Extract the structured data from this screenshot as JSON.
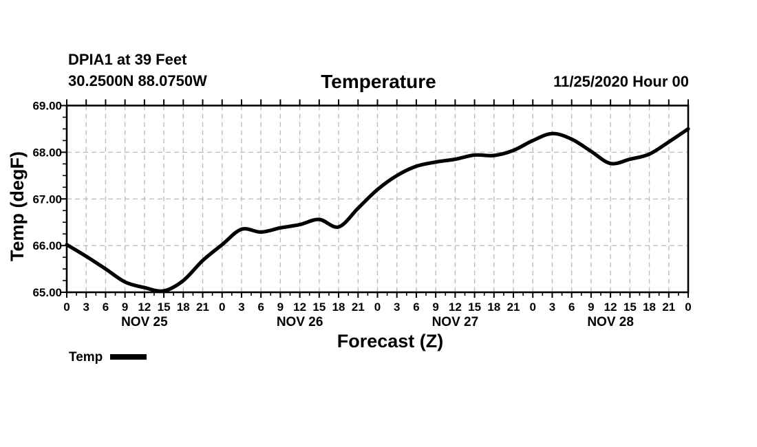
{
  "header": {
    "station_line1": "DPIA1 at 39 Feet",
    "station_line2": "30.2500N 88.0750W",
    "title": "Temperature",
    "init_time": "11/25/2020 Hour 00"
  },
  "colors": {
    "background": "#ffffff",
    "text": "#000000",
    "grid": "#b9b9b9",
    "line": "#000000"
  },
  "chart_data": {
    "type": "line",
    "title": "Temperature",
    "xlabel": "Forecast (Z)",
    "ylabel": "Temp (degF)",
    "xlim_hours": [
      0,
      96
    ],
    "ylim": [
      65.0,
      69.0
    ],
    "y_ticks": [
      65,
      66,
      67,
      68,
      69
    ],
    "y_tick_labels": [
      "65.00",
      "66.00",
      "67.00",
      "68.00",
      "69.00"
    ],
    "y_minor_step": 0.25,
    "y_gridlines": [
      66,
      67,
      68
    ],
    "x_tick_step_hours": 3,
    "x_minor_step_hours": 1.5,
    "x_hours": [
      0,
      3,
      6,
      9,
      12,
      15,
      18,
      21,
      24,
      27,
      30,
      33,
      36,
      39,
      42,
      45,
      48,
      51,
      54,
      57,
      60,
      63,
      66,
      69,
      72,
      75,
      78,
      81,
      84,
      87,
      90,
      93,
      96
    ],
    "x_tick_labels": [
      "0",
      "3",
      "6",
      "9",
      "12",
      "15",
      "18",
      "21",
      "0",
      "3",
      "6",
      "9",
      "12",
      "15",
      "18",
      "21",
      "0",
      "3",
      "6",
      "9",
      "12",
      "15",
      "18",
      "21",
      "0",
      "3",
      "6",
      "9",
      "12",
      "15",
      "18",
      "21",
      "0"
    ],
    "day_labels": [
      {
        "label": "NOV 25",
        "center_hour": 12
      },
      {
        "label": "NOV 26",
        "center_hour": 36
      },
      {
        "label": "NOV 27",
        "center_hour": 60
      },
      {
        "label": "NOV 28",
        "center_hour": 84
      }
    ],
    "grid_style": "dashed",
    "series": [
      {
        "name": "Temp",
        "values": [
          66.02,
          65.77,
          65.5,
          65.22,
          65.1,
          65.03,
          65.25,
          65.68,
          66.02,
          66.35,
          66.29,
          66.38,
          66.45,
          66.56,
          66.4,
          66.8,
          67.2,
          67.5,
          67.7,
          67.79,
          67.85,
          67.94,
          67.93,
          68.04,
          68.25,
          68.4,
          68.28,
          68.02,
          67.76,
          67.85,
          67.96,
          68.22,
          68.5
        ]
      }
    ],
    "legend": {
      "label": "Temp",
      "position": "bottom-left"
    }
  }
}
